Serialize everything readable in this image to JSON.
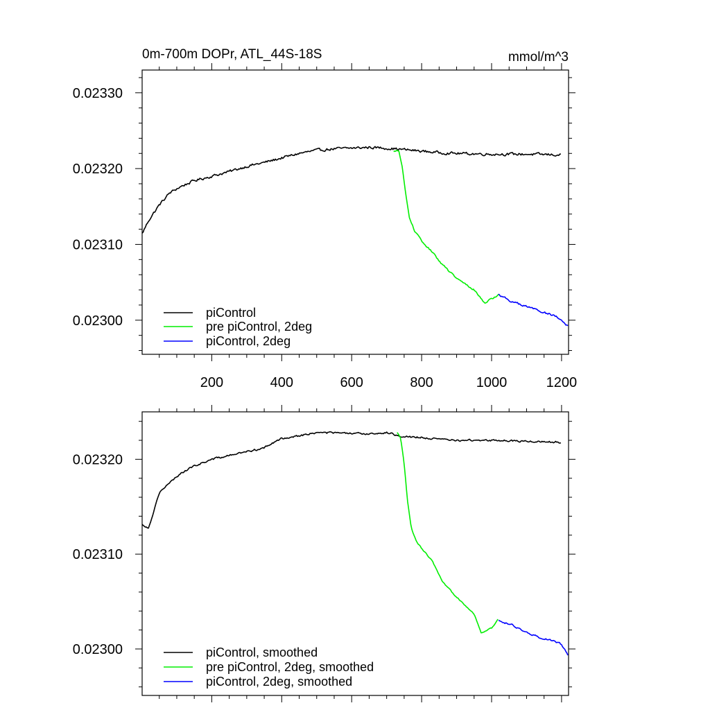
{
  "chart_data": [
    {
      "type": "line",
      "title": "0m-700m DOPr, ATL_44S-18S",
      "units": "mmol/m^3",
      "xlabel": "",
      "ylabel": "",
      "xlim": [
        1,
        1220
      ],
      "ylim": [
        0.022955,
        0.02333
      ],
      "x_ticks": [
        200,
        400,
        600,
        800,
        1000,
        1200
      ],
      "x_tick_labels": [
        "200",
        "400",
        "600",
        "800",
        "1000",
        "1200"
      ],
      "y_ticks": [
        0.023,
        0.0231,
        0.0232,
        0.0233
      ],
      "y_tick_labels": [
        "0.02300",
        "0.02310",
        "0.02320",
        "0.02330"
      ],
      "legend_position": "bottom-left",
      "series": [
        {
          "name": "piControl",
          "color": "#000000",
          "noise": 2.8e-06,
          "points": [
            [
              1,
              0.023114
            ],
            [
              20,
              0.023132
            ],
            [
              50,
              0.023152
            ],
            [
              80,
              0.023168
            ],
            [
              110,
              0.023176
            ],
            [
              150,
              0.023184
            ],
            [
              200,
              0.02319
            ],
            [
              250,
              0.023196
            ],
            [
              300,
              0.023203
            ],
            [
              350,
              0.023208
            ],
            [
              400,
              0.023214
            ],
            [
              450,
              0.02322
            ],
            [
              500,
              0.023224
            ],
            [
              550,
              0.023226
            ],
            [
              600,
              0.023227
            ],
            [
              650,
              0.023228
            ],
            [
              700,
              0.023227
            ],
            [
              750,
              0.023225
            ],
            [
              800,
              0.023223
            ],
            [
              850,
              0.023221
            ],
            [
              900,
              0.02322
            ],
            [
              1000,
              0.023219
            ],
            [
              1100,
              0.023219
            ],
            [
              1200,
              0.023218
            ]
          ]
        },
        {
          "name": "pre piControl, 2deg",
          "color": "#00ee00",
          "noise": 1.8e-06,
          "points": [
            [
              720,
              0.023222
            ],
            [
              735,
              0.023224
            ],
            [
              745,
              0.0232
            ],
            [
              755,
              0.023165
            ],
            [
              765,
              0.023135
            ],
            [
              780,
              0.023118
            ],
            [
              800,
              0.023104
            ],
            [
              830,
              0.02309
            ],
            [
              860,
              0.023073
            ],
            [
              900,
              0.023055
            ],
            [
              950,
              0.02304
            ],
            [
              980,
              0.023023
            ],
            [
              1000,
              0.023028
            ],
            [
              1020,
              0.023034
            ]
          ]
        },
        {
          "name": "piControl, 2deg",
          "color": "#0000ff",
          "noise": 2.2e-06,
          "points": [
            [
              1020,
              0.023034
            ],
            [
              1060,
              0.023024
            ],
            [
              1100,
              0.023018
            ],
            [
              1140,
              0.023012
            ],
            [
              1180,
              0.023006
            ],
            [
              1200,
              0.023
            ],
            [
              1220,
              0.022991
            ]
          ]
        }
      ]
    },
    {
      "type": "line",
      "title": "",
      "units": "",
      "xlabel": "",
      "ylabel": "",
      "xlim": [
        1,
        1220
      ],
      "ylim": [
        0.022951,
        0.02325
      ],
      "x_ticks": [
        200,
        400,
        600,
        800,
        1000,
        1200
      ],
      "x_tick_labels": [],
      "y_ticks": [
        0.023,
        0.0231,
        0.0232
      ],
      "y_tick_labels": [
        "0.02300",
        "0.02310",
        "0.02320"
      ],
      "legend_position": "bottom-left",
      "series": [
        {
          "name": "piControl, smoothed",
          "color": "#000000",
          "noise": 1.6e-06,
          "points": [
            [
              1,
              0.023131
            ],
            [
              20,
              0.023128
            ],
            [
              50,
              0.023165
            ],
            [
              80,
              0.023175
            ],
            [
              110,
              0.023185
            ],
            [
              150,
              0.023193
            ],
            [
              200,
              0.0232
            ],
            [
              250,
              0.023204
            ],
            [
              300,
              0.023208
            ],
            [
              350,
              0.023212
            ],
            [
              400,
              0.023222
            ],
            [
              450,
              0.023225
            ],
            [
              500,
              0.023228
            ],
            [
              550,
              0.023228
            ],
            [
              600,
              0.023227
            ],
            [
              650,
              0.023227
            ],
            [
              700,
              0.023228
            ],
            [
              750,
              0.023224
            ],
            [
              800,
              0.023223
            ],
            [
              850,
              0.023221
            ],
            [
              900,
              0.02322
            ],
            [
              1000,
              0.02322
            ],
            [
              1100,
              0.023219
            ],
            [
              1200,
              0.023218
            ]
          ]
        },
        {
          "name": "pre piControl, 2deg, smoothed",
          "color": "#00ee00",
          "noise": 1.1e-06,
          "points": [
            [
              730,
              0.023228
            ],
            [
              740,
              0.023222
            ],
            [
              750,
              0.023195
            ],
            [
              760,
              0.023155
            ],
            [
              770,
              0.023128
            ],
            [
              785,
              0.023113
            ],
            [
              800,
              0.023106
            ],
            [
              830,
              0.023093
            ],
            [
              860,
              0.02307
            ],
            [
              900,
              0.023055
            ],
            [
              950,
              0.023037
            ],
            [
              970,
              0.023017
            ],
            [
              1000,
              0.023022
            ],
            [
              1020,
              0.023032
            ]
          ]
        },
        {
          "name": "piControl, 2deg, smoothed",
          "color": "#0000ff",
          "noise": 1.4e-06,
          "points": [
            [
              1020,
              0.02303
            ],
            [
              1060,
              0.023025
            ],
            [
              1100,
              0.023017
            ],
            [
              1140,
              0.023012
            ],
            [
              1180,
              0.023008
            ],
            [
              1200,
              0.023005
            ],
            [
              1220,
              0.022992
            ]
          ]
        }
      ]
    }
  ]
}
